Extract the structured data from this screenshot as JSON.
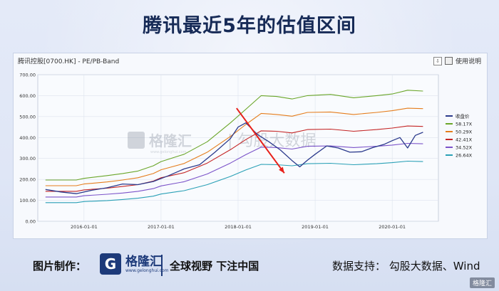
{
  "title": "腾讯最近5年的估值区间",
  "panel": {
    "header": "腾讯控股[0700.HK] - PE/PB-Band",
    "help": "使用说明"
  },
  "chart_data": {
    "type": "line",
    "ylim": [
      0,
      700
    ],
    "yticks": [
      "0.00",
      "100.00",
      "200.00",
      "300.00",
      "400.00",
      "500.00",
      "600.00",
      "700.00"
    ],
    "xticks": [
      "2016-01-01",
      "2017-01-01",
      "2018-01-01",
      "2019-01-01",
      "2020-01-01"
    ],
    "x_range": [
      2015.4,
      2020.6
    ],
    "series": [
      {
        "name": "收盘价",
        "color": "#2b3a8c",
        "x": [
          2015.5,
          2015.7,
          2015.9,
          2016.1,
          2016.3,
          2016.5,
          2016.7,
          2016.9,
          2017.1,
          2017.3,
          2017.5,
          2017.7,
          2017.9,
          2018.0,
          2018.1,
          2018.25,
          2018.4,
          2018.55,
          2018.7,
          2018.8,
          2018.9,
          2019.0,
          2019.15,
          2019.3,
          2019.45,
          2019.6,
          2019.75,
          2019.9,
          2020.0,
          2020.1,
          2020.2,
          2020.3,
          2020.4
        ],
        "y": [
          152,
          140,
          132,
          148,
          160,
          178,
          175,
          190,
          218,
          250,
          270,
          330,
          395,
          450,
          470,
          415,
          380,
          340,
          290,
          260,
          292,
          320,
          360,
          350,
          330,
          332,
          352,
          368,
          385,
          400,
          350,
          410,
          425
        ]
      },
      {
        "name": "58.17X",
        "color": "#6aa629",
        "x": [
          2015.5,
          2015.9,
          2016.0,
          2016.3,
          2016.5,
          2016.7,
          2016.9,
          2017.0,
          2017.3,
          2017.6,
          2017.9,
          2018.1,
          2018.3,
          2018.5,
          2018.7,
          2018.9,
          2019.2,
          2019.5,
          2019.8,
          2020.0,
          2020.2,
          2020.4
        ],
        "y": [
          197,
          197,
          205,
          218,
          228,
          240,
          265,
          285,
          320,
          380,
          470,
          535,
          600,
          596,
          584,
          600,
          606,
          590,
          600,
          608,
          626,
          622
        ]
      },
      {
        "name": "50.29X",
        "color": "#e57d1c",
        "x": [
          2015.5,
          2015.9,
          2016.0,
          2016.3,
          2016.5,
          2016.7,
          2016.9,
          2017.0,
          2017.3,
          2017.6,
          2017.9,
          2018.1,
          2018.3,
          2018.5,
          2018.7,
          2018.9,
          2019.2,
          2019.5,
          2019.8,
          2020.0,
          2020.2,
          2020.4
        ],
        "y": [
          170,
          170,
          178,
          188,
          197,
          208,
          228,
          246,
          276,
          330,
          405,
          462,
          515,
          510,
          502,
          520,
          522,
          510,
          520,
          528,
          540,
          538
        ]
      },
      {
        "name": "42.41X",
        "color": "#c42424",
        "x": [
          2015.5,
          2015.9,
          2016.0,
          2016.3,
          2016.5,
          2016.7,
          2016.9,
          2017.0,
          2017.3,
          2017.6,
          2017.9,
          2018.1,
          2018.3,
          2018.5,
          2018.7,
          2018.9,
          2019.2,
          2019.5,
          2019.8,
          2020.0,
          2020.2,
          2020.4
        ],
        "y": [
          143,
          143,
          150,
          158,
          166,
          175,
          192,
          208,
          232,
          278,
          342,
          390,
          432,
          430,
          422,
          438,
          440,
          430,
          438,
          445,
          455,
          453
        ]
      },
      {
        "name": "34.52X",
        "color": "#7b53c9",
        "x": [
          2015.5,
          2015.9,
          2016.0,
          2016.3,
          2016.5,
          2016.7,
          2016.9,
          2017.0,
          2017.3,
          2017.6,
          2017.9,
          2018.1,
          2018.3,
          2018.5,
          2018.7,
          2018.9,
          2019.2,
          2019.5,
          2019.8,
          2020.0,
          2020.2,
          2020.4
        ],
        "y": [
          116,
          116,
          122,
          129,
          135,
          143,
          156,
          169,
          189,
          226,
          278,
          318,
          354,
          352,
          345,
          358,
          360,
          352,
          358,
          364,
          372,
          370
        ]
      },
      {
        "name": "26.64X",
        "color": "#2aa0b6",
        "x": [
          2015.5,
          2015.9,
          2016.0,
          2016.3,
          2016.5,
          2016.7,
          2016.9,
          2017.0,
          2017.3,
          2017.6,
          2017.9,
          2018.1,
          2018.3,
          2018.5,
          2018.7,
          2018.9,
          2019.2,
          2019.5,
          2019.8,
          2020.0,
          2020.2,
          2020.4
        ],
        "y": [
          89,
          89,
          94,
          99,
          104,
          110,
          120,
          130,
          146,
          175,
          214,
          245,
          272,
          270,
          265,
          275,
          277,
          270,
          275,
          280,
          287,
          285
        ]
      }
    ],
    "annotation": {
      "type": "arrow",
      "color": "#e8201a",
      "from": [
        2017.98,
        540
      ],
      "to": [
        2018.6,
        230
      ]
    },
    "grid": true
  },
  "watermark": {
    "brand": "格隆汇",
    "site": "www.gelonghui.com",
    "tail": "勾股大数据"
  },
  "footer": {
    "made_label": "图片制作：",
    "logo_char": "G",
    "logo_name": "格隆汇",
    "logo_site": "www.gelonghui.com",
    "slogan": "全球视野 下注中国",
    "support": "数据支持：  勾股大数据、Wind",
    "corner": "格隆汇"
  }
}
